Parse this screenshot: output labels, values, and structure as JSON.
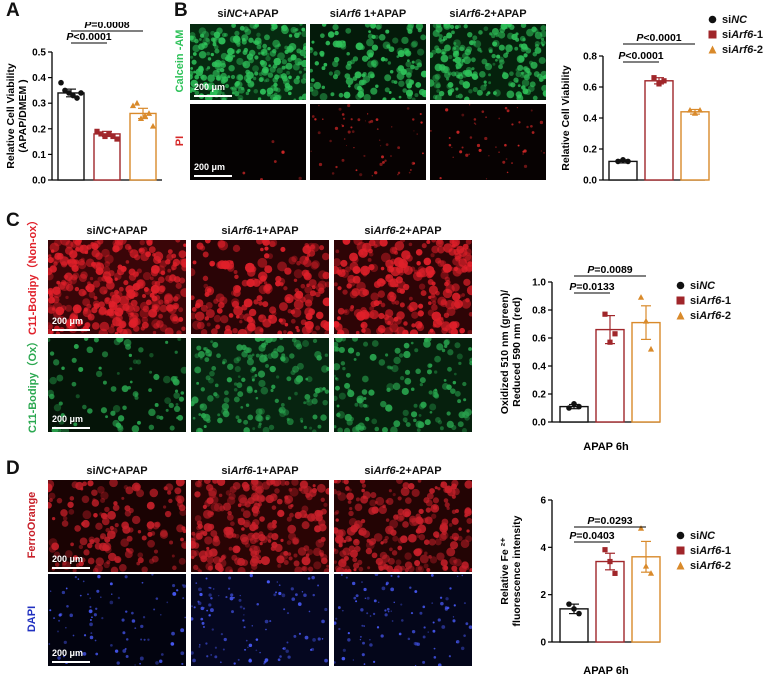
{
  "panels": {
    "A": {
      "letter": "A"
    },
    "B": {
      "letter": "B",
      "col_headers": [
        "siNC+APAP",
        "siArf6 1+APAP",
        "siArf6-2+APAP"
      ],
      "row_labels": [
        "Calcein -AM",
        "PI"
      ],
      "scale": "200 μm"
    },
    "C": {
      "letter": "C",
      "col_headers": [
        "siNC+APAP",
        "siArf6-1+APAP",
        "siArf6-2+APAP"
      ],
      "row_labels": [
        "C11-Bodipy（Non-ox）",
        "C11-Bodipy（Ox）"
      ],
      "scale": "200 μm"
    },
    "D": {
      "letter": "D",
      "col_headers": [
        "siNC+APAP",
        "siArf6-1+APAP",
        "siArf6-2+APAP"
      ],
      "row_labels": [
        "FerroOrange",
        "DAPI"
      ],
      "scale": "200 μm"
    }
  },
  "legend": {
    "items": [
      {
        "prefix": "si",
        "italic": "NC",
        "suffix": "",
        "color": "#111111",
        "shape": "circle"
      },
      {
        "prefix": "si",
        "italic": "Arf6",
        "suffix": "-1",
        "color": "#a0262a",
        "shape": "square"
      },
      {
        "prefix": "si",
        "italic": "Arf6",
        "suffix": "-2",
        "color": "#d98a2b",
        "shape": "triangle"
      }
    ]
  },
  "colors": {
    "nc": "#111111",
    "arf1": "#a0262a",
    "arf2": "#d98a2b",
    "calcein": "#2fc25a",
    "pi": "#d62828",
    "nonox": "#e0202a",
    "ox": "#2aa850",
    "ferro": "#c8202a",
    "dapi": "#2030c0"
  },
  "chart_data": [
    {
      "id": "A",
      "type": "bar",
      "categories": [
        "siNC",
        "siArf6-1",
        "siArf6-2"
      ],
      "values": [
        0.34,
        0.18,
        0.26
      ],
      "errors": [
        0.015,
        0.01,
        0.02
      ],
      "points": [
        [
          0.38,
          0.35,
          0.34,
          0.33,
          0.32,
          0.34
        ],
        [
          0.19,
          0.18,
          0.17,
          0.18,
          0.17,
          0.16
        ],
        [
          0.29,
          0.3,
          0.24,
          0.25,
          0.26,
          0.21
        ]
      ],
      "ylabel": "Relative Cell Viability (APAP/DMEM )",
      "ylabel_lines": [
        "Relative Cell Viability",
        "(APAP/DMEM )"
      ],
      "ylim": [
        0,
        0.5
      ],
      "yticks": [
        "0.0",
        "0.1",
        "0.2",
        "0.3",
        "0.4",
        "0.5"
      ],
      "brackets": [
        {
          "from": 0,
          "to": 1,
          "label": "P<0.0001"
        },
        {
          "from": 0,
          "to": 2,
          "label": "P=0.0008"
        }
      ]
    },
    {
      "id": "B",
      "type": "bar",
      "categories": [
        "siNC",
        "siArf6-1",
        "siArf6-2"
      ],
      "values": [
        0.12,
        0.64,
        0.44
      ],
      "errors": [
        0.01,
        0.02,
        0.015
      ],
      "points": [
        [
          0.12,
          0.13,
          0.12
        ],
        [
          0.66,
          0.62,
          0.64
        ],
        [
          0.45,
          0.43,
          0.45
        ]
      ],
      "ylabel": "Relative Cell Viability",
      "ylabel_lines": [
        "Relative Cell Viability"
      ],
      "ylim": [
        0,
        0.8
      ],
      "yticks": [
        "0.0",
        "0.2",
        "0.4",
        "0.6",
        "0.8"
      ],
      "brackets": [
        {
          "from": 0,
          "to": 1,
          "label": "P<0.0001"
        },
        {
          "from": 0,
          "to": 2,
          "label": "P<0.0001"
        }
      ]
    },
    {
      "id": "C",
      "type": "bar",
      "categories": [
        "siNC",
        "siArf6-1",
        "siArf6-2"
      ],
      "values": [
        0.11,
        0.66,
        0.71
      ],
      "errors": [
        0.015,
        0.1,
        0.12
      ],
      "points": [
        [
          0.1,
          0.13,
          0.11
        ],
        [
          0.77,
          0.57,
          0.63
        ],
        [
          0.89,
          0.72,
          0.52
        ]
      ],
      "ylabel": "Oxidized 510 nm (green)/ Reduced 590 nm (red)",
      "ylabel_lines": [
        "Oxidized 510 nm (green)/",
        "Reduced 590 nm (red)"
      ],
      "xlabel": "APAP 6h",
      "ylim": [
        0,
        1.0
      ],
      "yticks": [
        "0.0",
        "0.2",
        "0.4",
        "0.6",
        "0.8",
        "1.0"
      ],
      "brackets": [
        {
          "from": 0,
          "to": 1,
          "label": "P=0.0133"
        },
        {
          "from": 0,
          "to": 2,
          "label": "P=0.0089"
        }
      ]
    },
    {
      "id": "D",
      "type": "bar",
      "categories": [
        "siNC",
        "siArf6-1",
        "siArf6-2"
      ],
      "values": [
        1.4,
        3.4,
        3.6
      ],
      "errors": [
        0.2,
        0.35,
        0.65
      ],
      "points": [
        [
          1.6,
          1.4,
          1.2
        ],
        [
          3.9,
          3.4,
          2.9
        ],
        [
          4.8,
          3.2,
          2.9
        ]
      ],
      "ylabel": "Relative Fe 2+ fluorescence intensity",
      "ylabel_lines": [
        "Relative Fe ²⁺",
        "fluorescence intensity"
      ],
      "xlabel": "APAP 6h",
      "ylim": [
        0,
        6
      ],
      "yticks": [
        "0",
        "2",
        "4",
        "6"
      ],
      "brackets": [
        {
          "from": 0,
          "to": 1,
          "label": "P=0.0403"
        },
        {
          "from": 0,
          "to": 2,
          "label": "P=0.0293"
        }
      ]
    }
  ]
}
